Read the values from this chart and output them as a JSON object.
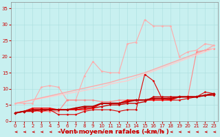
{
  "x": [
    0,
    1,
    2,
    3,
    4,
    5,
    6,
    7,
    8,
    9,
    10,
    11,
    12,
    13,
    14,
    15,
    16,
    17,
    18,
    19,
    20,
    21,
    22,
    23
  ],
  "background_color": "#c8f0f0",
  "grid_color": "#aadddd",
  "xlabel": "Vent moyen/en rafales ( km/h )",
  "xlabel_color": "#cc0000",
  "xlabel_fontsize": 6.5,
  "tick_color": "#cc0000",
  "tick_fontsize": 5,
  "ylim": [
    0,
    37
  ],
  "yticks": [
    0,
    5,
    10,
    15,
    20,
    25,
    30,
    35
  ],
  "series": [
    {
      "name": "line1_pink_light",
      "color": "#ffaaaa",
      "linewidth": 0.8,
      "marker": "D",
      "markersize": 1.5,
      "values": [
        5.5,
        5.5,
        5.5,
        10.5,
        11.0,
        10.5,
        6.5,
        6.5,
        14.0,
        18.5,
        15.5,
        15.0,
        15.0,
        24.0,
        24.5,
        31.5,
        29.5,
        29.5,
        29.5,
        20.0,
        21.5,
        22.0,
        24.0,
        23.5
      ]
    },
    {
      "name": "line2_pink_medium",
      "color": "#ff8888",
      "linewidth": 0.8,
      "marker": "D",
      "markersize": 1.5,
      "values": [
        2.5,
        3.0,
        3.0,
        3.0,
        3.0,
        3.0,
        6.5,
        6.5,
        6.5,
        6.5,
        6.0,
        6.0,
        6.5,
        6.5,
        6.5,
        6.5,
        6.5,
        6.5,
        7.5,
        7.5,
        7.5,
        21.5,
        22.0,
        22.5
      ]
    },
    {
      "name": "line3_pink_linear",
      "color": "#ffcccc",
      "linewidth": 1.0,
      "marker": null,
      "markersize": 0,
      "values": [
        5.5,
        6.0,
        6.5,
        7.0,
        7.5,
        8.0,
        8.5,
        9.0,
        9.5,
        10.0,
        10.5,
        11.5,
        12.0,
        12.5,
        13.5,
        14.5,
        15.5,
        16.5,
        17.5,
        18.5,
        19.5,
        20.5,
        21.5,
        22.5
      ]
    },
    {
      "name": "line4_pink_linear2",
      "color": "#ffaaaa",
      "linewidth": 1.0,
      "marker": null,
      "markersize": 0,
      "values": [
        5.5,
        6.0,
        6.6,
        7.2,
        7.8,
        8.4,
        9.0,
        9.6,
        10.2,
        10.8,
        11.4,
        12.0,
        12.8,
        13.5,
        14.2,
        15.0,
        16.0,
        17.0,
        18.0,
        19.0,
        20.0,
        21.0,
        22.0,
        23.5
      ]
    },
    {
      "name": "line5_red_dark",
      "color": "#dd0000",
      "linewidth": 0.8,
      "marker": "D",
      "markersize": 1.5,
      "values": [
        2.5,
        3.0,
        3.5,
        3.0,
        3.5,
        2.0,
        2.0,
        2.0,
        3.0,
        3.5,
        3.5,
        3.5,
        3.0,
        3.5,
        3.5,
        14.5,
        12.5,
        7.0,
        6.5,
        6.5,
        7.0,
        7.5,
        9.0,
        8.5
      ]
    },
    {
      "name": "line6_red_flat",
      "color": "#cc0000",
      "linewidth": 1.0,
      "marker": "D",
      "markersize": 1.5,
      "values": [
        2.5,
        3.0,
        3.0,
        3.5,
        3.5,
        3.5,
        3.5,
        3.5,
        4.0,
        4.0,
        4.5,
        5.0,
        5.0,
        5.5,
        5.5,
        6.0,
        7.5,
        7.5,
        7.5,
        7.5,
        7.5,
        7.5,
        8.0,
        8.0
      ]
    },
    {
      "name": "line7_red_flat2",
      "color": "#ff0000",
      "linewidth": 1.0,
      "marker": "D",
      "markersize": 1.5,
      "values": [
        2.5,
        3.0,
        4.0,
        4.0,
        4.0,
        3.5,
        3.5,
        3.5,
        3.5,
        4.0,
        5.5,
        5.5,
        5.5,
        6.5,
        6.5,
        6.5,
        6.5,
        6.5,
        6.5,
        7.5,
        7.5,
        7.5,
        8.0,
        8.5
      ]
    },
    {
      "name": "line8_red_bold",
      "color": "#bb0000",
      "linewidth": 1.5,
      "marker": "D",
      "markersize": 2.0,
      "values": [
        2.5,
        3.0,
        3.5,
        3.5,
        3.5,
        3.5,
        3.5,
        4.0,
        4.5,
        4.5,
        5.5,
        5.5,
        5.5,
        6.0,
        6.5,
        6.5,
        7.0,
        7.0,
        7.0,
        7.5,
        7.5,
        7.5,
        8.0,
        8.5
      ]
    }
  ],
  "arrow_color": "#cc0000"
}
